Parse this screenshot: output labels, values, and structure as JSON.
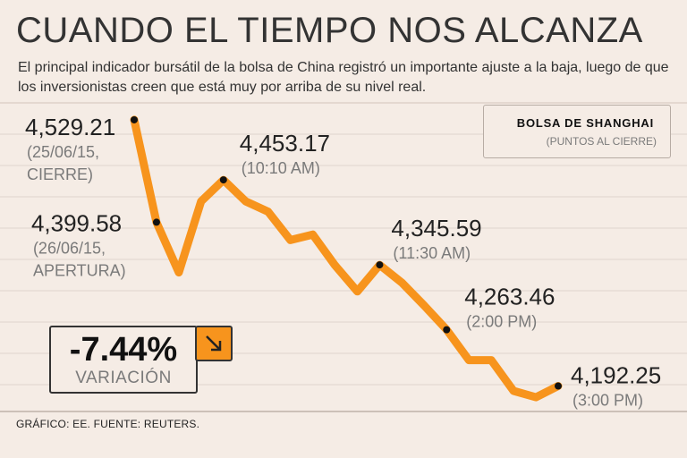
{
  "header": {
    "title": "CUANDO EL TIEMPO NOS ALCANZA",
    "subtitle": "El principal indicador bursátil de la bolsa de China registró un importante ajuste a la baja, luego de que los inversionistas creen que está muy por arriba de su nivel real."
  },
  "legend": {
    "title": "BOLSA DE SHANGHAI",
    "subtitle": "(PUNTOS AL CIERRE)"
  },
  "variation": {
    "value": "-7.44%",
    "label": "VARIACIÓN",
    "arrow_icon": "arrow-down-right-icon"
  },
  "footer": "GRÁFICO: EE. FUENTE: REUTERS.",
  "colors": {
    "line": "#f7941d",
    "background": "#f5ece5",
    "grid": "#d9ccc4"
  },
  "chart_data": {
    "type": "line",
    "title": "BOLSA DE SHANGHAI",
    "ylabel": "(PUNTOS AL CIERRE)",
    "xlabel": "",
    "ylim": [
      4160,
      4545
    ],
    "grid": true,
    "series": [
      {
        "name": "Bolsa de Shanghai",
        "values": [
          4529.21,
          4399.58,
          4336,
          4426,
          4453.17,
          4426,
          4413,
          4377,
          4384,
          4345,
          4312,
          4345.59,
          4323,
          4294,
          4263.46,
          4225,
          4225,
          4186,
          4178,
          4192.25
        ]
      }
    ],
    "annotations": [
      {
        "index": 0,
        "value": "4,529.21",
        "lines": [
          "(25/06/15,",
          "CIERRE)"
        ]
      },
      {
        "index": 1,
        "value": "4,399.58",
        "lines": [
          "(26/06/15,",
          "APERTURA)"
        ]
      },
      {
        "index": 4,
        "value": "4,453.17",
        "lines": [
          "(10:10 AM)"
        ]
      },
      {
        "index": 11,
        "value": "4,345.59",
        "lines": [
          "(11:30 AM)"
        ]
      },
      {
        "index": 14,
        "value": "4,263.46",
        "lines": [
          "(2:00 PM)"
        ]
      },
      {
        "index": 19,
        "value": "4,192.25",
        "lines": [
          "(3:00 PM)"
        ]
      }
    ]
  }
}
